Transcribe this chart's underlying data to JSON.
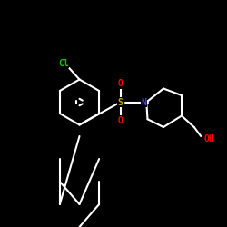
{
  "background_color": "#000000",
  "bond_color": "#ffffff",
  "atom_colors": {
    "Cl": "#00cc00",
    "S": "#ccaa00",
    "O": "#ff0000",
    "N": "#4444ff",
    "H": "#ffffff",
    "OH": "#ff0000"
  },
  "figsize": [
    2.5,
    2.5
  ],
  "dpi": 100
}
